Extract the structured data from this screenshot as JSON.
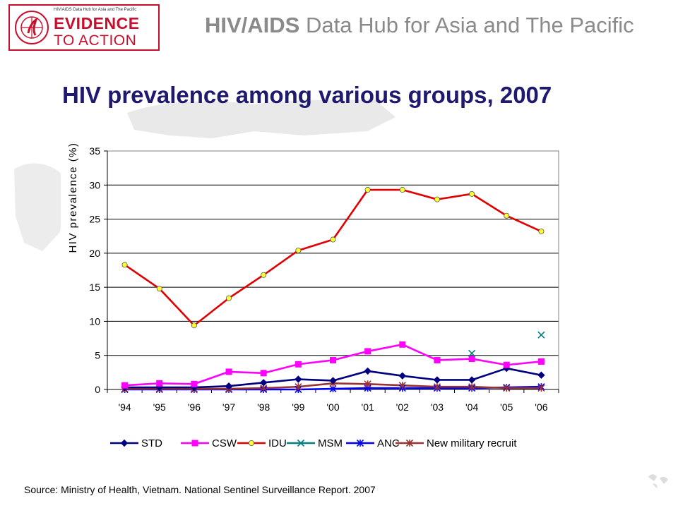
{
  "header": {
    "logo_small": "HIV/AIDS Data Hub for Asia and The Pacific",
    "logo_line1": "EVIDENCE",
    "logo_line2": "TO ACTION",
    "hub_title_bold": "HIV/AIDS",
    "hub_title_rest": " Data Hub for Asia and The Pacific"
  },
  "slide_title": "HIV prevalence among various groups, 2007",
  "source": "Source: Ministry of Health, Vietnam. National Sentinel Surveillance Report. 2007",
  "colors": {
    "title": "#1f1a6e",
    "brand_red": "#c8102e",
    "STD": "#00007f",
    "CSW": "#ff00ff",
    "IDU": "#e00000",
    "IDU_marker": "#ffff33",
    "MSM": "#008080",
    "ANC": "#0000ff",
    "New military recruit": "#993333"
  },
  "chart_data": {
    "type": "line",
    "title": "",
    "xlabel": "",
    "ylabel": "HIV prevalence (%)",
    "ylim": [
      0,
      35
    ],
    "yticks": [
      0,
      5,
      10,
      15,
      20,
      25,
      30,
      35
    ],
    "grid": true,
    "legend_position": "bottom",
    "categories": [
      "'94",
      "'95",
      "'96",
      "'97",
      "'98",
      "'99",
      "'00",
      "'01",
      "'02",
      "'03",
      "'04",
      "'05",
      "'06"
    ],
    "series": [
      {
        "name": "STD",
        "marker": "diamond",
        "values": [
          0.3,
          0.3,
          0.3,
          0.5,
          1.0,
          1.5,
          1.3,
          2.7,
          2.0,
          1.4,
          1.4,
          3.1,
          2.1
        ]
      },
      {
        "name": "CSW",
        "marker": "square",
        "values": [
          0.6,
          0.9,
          0.8,
          2.6,
          2.4,
          3.7,
          4.3,
          5.6,
          6.6,
          4.3,
          4.5,
          3.6,
          4.1
        ]
      },
      {
        "name": "IDU",
        "marker": "circle",
        "values": [
          18.3,
          14.8,
          9.4,
          13.4,
          16.8,
          20.4,
          22.0,
          29.3,
          29.3,
          27.9,
          28.7,
          25.5,
          23.2
        ]
      },
      {
        "name": "MSM",
        "marker": "x",
        "values": [
          null,
          null,
          null,
          null,
          null,
          null,
          null,
          null,
          null,
          null,
          5.3,
          null,
          8.0
        ]
      },
      {
        "name": "ANC",
        "marker": "star",
        "values": [
          0.0,
          0.0,
          0.0,
          0.0,
          0.0,
          0.0,
          0.1,
          0.2,
          0.2,
          0.2,
          0.2,
          0.3,
          0.4
        ]
      },
      {
        "name": "New military recruit",
        "marker": "star",
        "values": [
          0.1,
          0.1,
          0.1,
          0.1,
          0.2,
          0.4,
          0.9,
          0.8,
          0.6,
          0.4,
          0.4,
          0.2,
          0.2
        ]
      }
    ]
  }
}
